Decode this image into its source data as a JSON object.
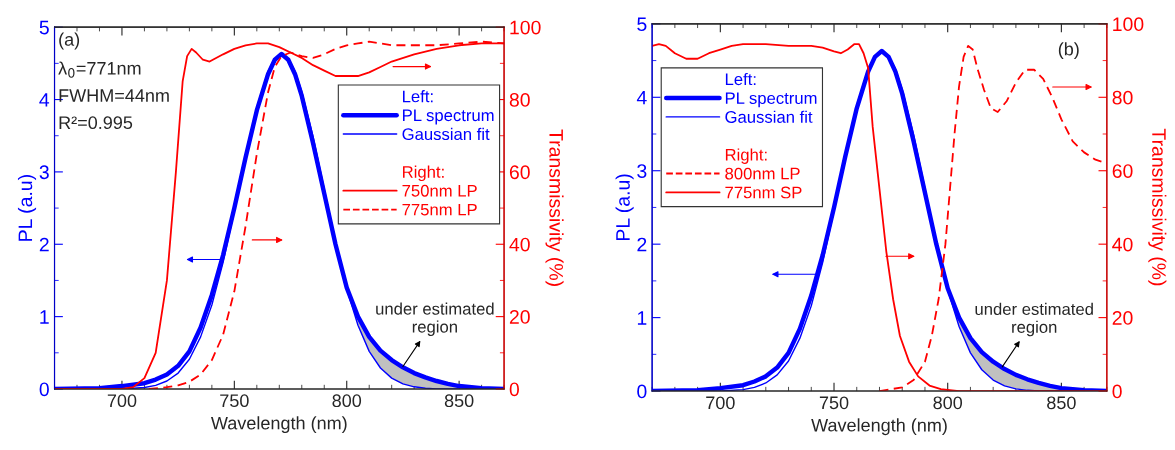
{
  "chart_data": [
    {
      "type": "line",
      "xlabel": "Wavelength (nm)",
      "ylabel": "PL (a.u)",
      "y2label": "Transmissivity (%)",
      "xlim": [
        670,
        870
      ],
      "xticks": [
        700,
        750,
        800,
        850
      ],
      "ylim": [
        0,
        5
      ],
      "yticks": [
        0,
        1,
        2,
        3,
        4,
        5
      ],
      "y2lim": [
        0,
        100
      ],
      "y2ticks": [
        0,
        20,
        40,
        60,
        80,
        100
      ],
      "legend": "right",
      "legend_title": [
        "Left:",
        "Right:"
      ],
      "annotations": [
        "(a)",
        "λ$_{0}$=771nm",
        "FWHM=44nm",
        "R²=0.995",
        {
          "text": "under estimated region",
          "x": 825,
          "y": 0.31
        }
      ],
      "series": [
        {
          "name": "PL spectrum",
          "color": "#0000ff",
          "axis": "y",
          "x": [
            670,
            690,
            700,
            710,
            715,
            720,
            725,
            730,
            735,
            740,
            745,
            750,
            755,
            760,
            765,
            768,
            771,
            774,
            777,
            780,
            785,
            790,
            795,
            800,
            805,
            810,
            815,
            820,
            825,
            830,
            835,
            840,
            845,
            850,
            860,
            870
          ],
          "values": [
            0,
            0.01,
            0.04,
            0.08,
            0.13,
            0.2,
            0.32,
            0.52,
            0.85,
            1.3,
            1.85,
            2.5,
            3.2,
            3.85,
            4.35,
            4.55,
            4.63,
            4.55,
            4.35,
            4.05,
            3.4,
            2.7,
            2.0,
            1.4,
            1.0,
            0.72,
            0.53,
            0.4,
            0.3,
            0.22,
            0.16,
            0.11,
            0.07,
            0.04,
            0.01,
            0
          ],
          "lower": [
            null,
            null,
            null,
            null,
            null,
            null,
            null,
            null,
            null,
            null,
            null,
            null,
            null,
            null,
            null,
            null,
            null,
            null,
            null,
            null,
            null,
            null,
            null,
            1.38,
            0.88,
            0.52,
            0.29,
            0.15,
            0.07,
            0.03,
            0.01,
            0,
            0,
            0,
            null,
            null
          ],
          "upper": [
            null,
            null,
            null,
            null,
            null,
            null,
            null,
            null,
            null,
            null,
            null,
            null,
            null,
            null,
            null,
            null,
            null,
            null,
            null,
            null,
            null,
            null,
            null,
            1.4,
            1.0,
            0.72,
            0.53,
            0.4,
            0.3,
            0.22,
            0.16,
            0.11,
            0.07,
            0.04,
            null,
            null
          ]
        },
        {
          "name": "Gaussian fit",
          "color": "#0000ff",
          "axis": "y",
          "x": [
            670,
            690,
            700,
            710,
            715,
            720,
            725,
            730,
            735,
            740,
            745,
            750,
            755,
            760,
            765,
            768,
            771,
            774,
            777,
            780,
            785,
            790,
            795,
            800,
            805,
            810,
            815,
            820,
            825,
            830,
            835,
            840,
            845,
            850,
            860,
            870
          ],
          "values": [
            0,
            0,
            0,
            0.02,
            0.05,
            0.11,
            0.22,
            0.41,
            0.72,
            1.16,
            1.75,
            2.46,
            3.2,
            3.89,
            4.39,
            4.56,
            4.62,
            4.56,
            4.39,
            4.11,
            3.49,
            2.76,
            2.02,
            1.38,
            0.88,
            0.52,
            0.29,
            0.15,
            0.07,
            0.03,
            0.01,
            0,
            0,
            0,
            0,
            0
          ]
        },
        {
          "name": "750nm LP",
          "color": "#ff0000",
          "axis": "y2",
          "line_style": "solid",
          "x": [
            670,
            700,
            705,
            710,
            715,
            720,
            724,
            727,
            729,
            731,
            733,
            736,
            739,
            745,
            750,
            755,
            760,
            765,
            770,
            775,
            780,
            785,
            790,
            795,
            800,
            805,
            810,
            815,
            820,
            830,
            840,
            850,
            860,
            870
          ],
          "values": [
            0,
            0,
            0.5,
            3,
            10,
            30,
            60,
            85,
            92,
            94,
            93,
            91,
            90.5,
            92.5,
            94,
            95,
            95.5,
            95.5,
            94.5,
            93,
            91.5,
            89.5,
            88,
            86.5,
            86.5,
            86.5,
            87.5,
            89,
            90.5,
            92.5,
            94,
            95,
            95.5,
            95.5
          ]
        },
        {
          "name": "775nm LP",
          "color": "#ff0000",
          "axis": "y2",
          "line_style": "dashed",
          "x": [
            712,
            720,
            725,
            730,
            735,
            740,
            745,
            750,
            755,
            760,
            765,
            768,
            771,
            775,
            780,
            785,
            790,
            795,
            800,
            805,
            810,
            815,
            820,
            830,
            840,
            850,
            860,
            870
          ],
          "values": [
            0,
            0.5,
            1,
            2,
            4,
            8,
            15,
            27,
            45,
            65,
            82,
            89,
            92,
            93,
            92,
            91.5,
            92.5,
            94,
            95,
            95.5,
            96,
            95.5,
            95,
            95,
            95,
            95.5,
            96,
            95.5
          ]
        }
      ]
    },
    {
      "type": "line",
      "xlabel": "Wavelength (nm)",
      "ylabel": "PL (a.u)",
      "y2label": "Transmissivity (%)",
      "xlim": [
        670,
        870
      ],
      "xticks": [
        700,
        750,
        800,
        850
      ],
      "ylim": [
        0,
        5
      ],
      "yticks": [
        0,
        1,
        2,
        3,
        4,
        5
      ],
      "y2lim": [
        0,
        100
      ],
      "y2ticks": [
        0,
        20,
        40,
        60,
        80,
        100
      ],
      "legend": "upper left",
      "legend_title": [
        "Left:",
        "Right:"
      ],
      "annotations": [
        "(b)",
        {
          "text": "under estimated region",
          "x": 824,
          "y": 0.33
        }
      ],
      "series": [
        {
          "name": "PL spectrum",
          "color": "#0000ff",
          "axis": "y",
          "x": [
            670,
            690,
            700,
            710,
            715,
            720,
            725,
            730,
            735,
            740,
            745,
            750,
            755,
            760,
            765,
            768,
            771,
            774,
            777,
            780,
            785,
            790,
            795,
            800,
            805,
            810,
            815,
            820,
            825,
            830,
            835,
            840,
            845,
            850,
            860,
            870
          ],
          "values": [
            0,
            0.01,
            0.04,
            0.08,
            0.13,
            0.2,
            0.32,
            0.52,
            0.85,
            1.3,
            1.85,
            2.5,
            3.2,
            3.85,
            4.35,
            4.55,
            4.63,
            4.55,
            4.35,
            4.05,
            3.4,
            2.7,
            2.0,
            1.4,
            1.0,
            0.72,
            0.53,
            0.4,
            0.3,
            0.22,
            0.16,
            0.11,
            0.07,
            0.04,
            0.01,
            0
          ],
          "lower": [
            null,
            null,
            null,
            null,
            null,
            null,
            null,
            null,
            null,
            null,
            null,
            null,
            null,
            null,
            null,
            null,
            null,
            null,
            null,
            null,
            null,
            null,
            null,
            1.38,
            0.88,
            0.52,
            0.29,
            0.15,
            0.07,
            0.03,
            0.01,
            0,
            0,
            0,
            null,
            null
          ],
          "upper": [
            null,
            null,
            null,
            null,
            null,
            null,
            null,
            null,
            null,
            null,
            null,
            null,
            null,
            null,
            null,
            null,
            null,
            null,
            null,
            null,
            null,
            null,
            null,
            1.4,
            1.0,
            0.72,
            0.53,
            0.4,
            0.3,
            0.22,
            0.16,
            0.11,
            0.07,
            0.04,
            null,
            null
          ]
        },
        {
          "name": "Gaussian fit",
          "color": "#0000ff",
          "axis": "y",
          "x": [
            670,
            690,
            700,
            710,
            715,
            720,
            725,
            730,
            735,
            740,
            745,
            750,
            755,
            760,
            765,
            768,
            771,
            774,
            777,
            780,
            785,
            790,
            795,
            800,
            805,
            810,
            815,
            820,
            825,
            830,
            835,
            840,
            845,
            850,
            860,
            870
          ],
          "values": [
            0,
            0,
            0,
            0.02,
            0.05,
            0.11,
            0.22,
            0.41,
            0.72,
            1.16,
            1.75,
            2.46,
            3.2,
            3.89,
            4.39,
            4.56,
            4.62,
            4.56,
            4.39,
            4.11,
            3.49,
            2.76,
            2.02,
            1.38,
            0.88,
            0.52,
            0.29,
            0.15,
            0.07,
            0.03,
            0.01,
            0,
            0,
            0,
            0,
            0
          ]
        },
        {
          "name": "800nm LP",
          "color": "#ff0000",
          "axis": "y2",
          "line_style": "dashed",
          "x": [
            770,
            780,
            785,
            790,
            793,
            796,
            799,
            801,
            803,
            805,
            807,
            809,
            811,
            813,
            816,
            819,
            822,
            826,
            830,
            834,
            838,
            842,
            846,
            850,
            855,
            860,
            865,
            870
          ],
          "values": [
            0,
            1,
            3,
            8,
            15,
            25,
            40,
            55,
            70,
            83,
            91,
            94,
            93,
            88,
            82,
            77,
            76,
            79,
            84,
            87.5,
            87.5,
            85,
            80,
            74,
            68,
            65,
            63,
            62
          ]
        },
        {
          "name": "775nm SP",
          "color": "#ff0000",
          "axis": "y2",
          "line_style": "solid",
          "x": [
            670,
            673,
            676,
            680,
            685,
            690,
            695,
            700,
            705,
            710,
            720,
            730,
            740,
            745,
            750,
            753,
            756,
            759,
            761,
            763,
            765,
            767,
            770,
            773,
            776,
            779,
            783,
            787,
            792,
            797,
            805,
            870
          ],
          "values": [
            94,
            94.5,
            94,
            92,
            90.5,
            90.5,
            92,
            93,
            94,
            94.5,
            94.5,
            94,
            94,
            93.5,
            92.5,
            92,
            93,
            94.5,
            94.5,
            92,
            88,
            72,
            55,
            38,
            25,
            15,
            8,
            4,
            1.5,
            0.5,
            0,
            0
          ]
        }
      ]
    }
  ]
}
